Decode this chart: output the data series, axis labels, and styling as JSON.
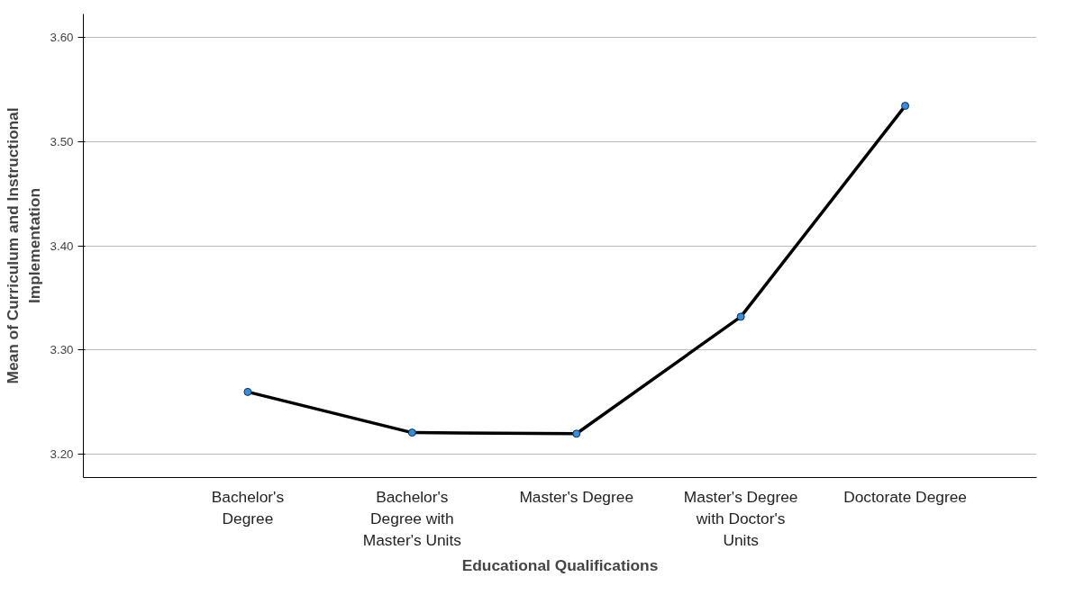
{
  "chart_data": {
    "type": "line",
    "xlabel": "Educational Qualifications",
    "ylabel": "Mean of Curriculum and Instructional Implementation",
    "categories": [
      "Bachelor's Degree",
      "Bachelor's Degree with Master's Units",
      "Master's Degree",
      "Master's Degree with Doctor's Units",
      "Doctorate Degree"
    ],
    "series": [
      {
        "color": "#000000",
        "values": [
          3.26,
          3.221,
          3.22,
          3.332,
          3.534
        ]
      }
    ],
    "marker": "circle",
    "line_style": "solid",
    "grid": "y",
    "ylim": [
      3.178,
      3.622
    ],
    "yticks": [
      {
        "value": 3.2,
        "label": "3.20"
      },
      {
        "value": 3.3,
        "label": "3.30"
      },
      {
        "value": 3.4,
        "label": "3.40"
      },
      {
        "value": 3.5,
        "label": "3.50"
      },
      {
        "value": 3.6,
        "label": "3.60"
      }
    ]
  }
}
